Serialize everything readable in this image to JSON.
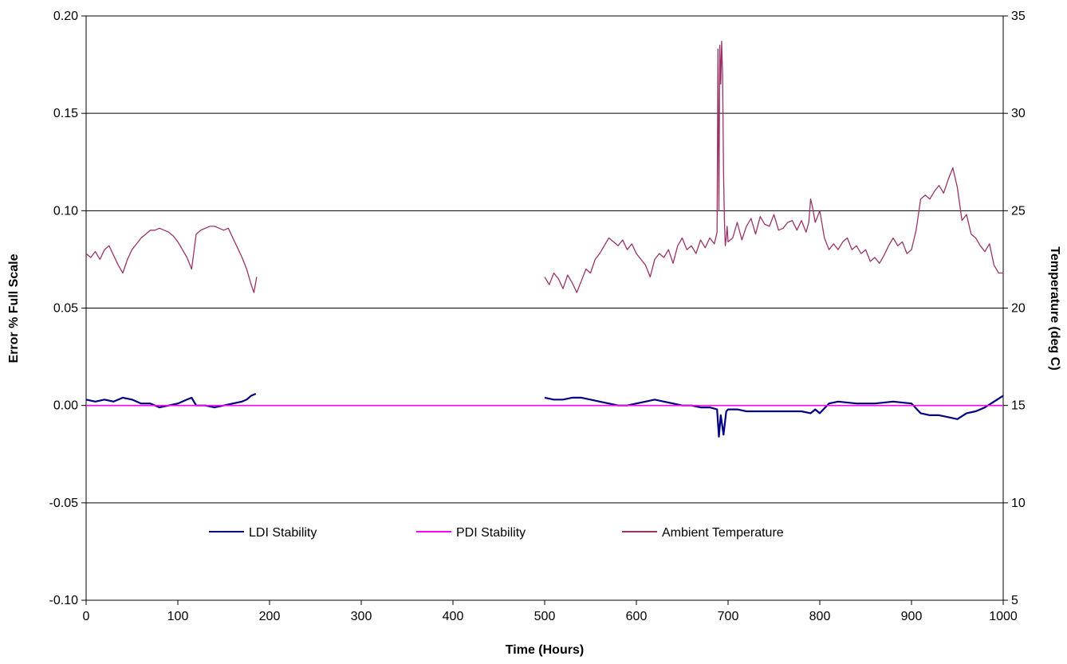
{
  "chart_data": {
    "type": "line",
    "title": "",
    "xlabel": "Time (Hours)",
    "ylabel": "Error % Full Scale",
    "y2label": "Temperature (deg C)",
    "xlim": [
      0,
      1000
    ],
    "ylim": [
      -0.1,
      0.2
    ],
    "y2lim": [
      5,
      35
    ],
    "x_ticks": [
      "0",
      "100",
      "200",
      "300",
      "400",
      "500",
      "600",
      "700",
      "800",
      "900",
      "1000"
    ],
    "y_ticks": [
      "-0.10",
      "-0.05",
      "0.00",
      "0.05",
      "0.10",
      "0.15",
      "0.20"
    ],
    "y2_ticks": [
      "5",
      "10",
      "15",
      "20",
      "25",
      "30",
      "35"
    ],
    "grid": "horizontal",
    "legend_position": "bottom-center",
    "colors": {
      "ldi": "#000080",
      "pdi": "#ff00ff",
      "ambient": "#993366"
    },
    "series": [
      {
        "name": "LDI Stability",
        "axis": "left",
        "segments": [
          {
            "x": [
              0,
              10,
              20,
              30,
              40,
              50,
              60,
              70,
              80,
              90,
              100,
              110,
              115,
              120,
              130,
              140,
              150,
              160,
              170,
              175,
              180,
              185
            ],
            "y": [
              0.003,
              0.002,
              0.003,
              0.002,
              0.004,
              0.003,
              0.001,
              0.001,
              -0.001,
              0.0,
              0.001,
              0.003,
              0.004,
              0.0,
              0.0,
              -0.001,
              0.0,
              0.001,
              0.002,
              0.003,
              0.005,
              0.006
            ]
          },
          {
            "x": [
              500,
              510,
              520,
              530,
              540,
              550,
              560,
              570,
              580,
              590,
              600,
              610,
              620,
              630,
              640,
              650,
              660,
              670,
              680,
              688,
              690,
              692,
              695,
              698,
              700,
              710,
              720,
              740,
              760,
              780,
              790,
              795,
              800,
              810,
              820,
              840,
              860,
              880,
              900,
              910,
              920,
              930,
              940,
              950,
              960,
              970,
              980,
              990,
              1000
            ],
            "y": [
              0.004,
              0.003,
              0.003,
              0.004,
              0.004,
              0.003,
              0.002,
              0.001,
              0.0,
              0.0,
              0.001,
              0.002,
              0.003,
              0.002,
              0.001,
              0.0,
              0.0,
              -0.001,
              -0.001,
              -0.002,
              -0.016,
              -0.005,
              -0.015,
              -0.003,
              -0.002,
              -0.002,
              -0.003,
              -0.003,
              -0.003,
              -0.003,
              -0.004,
              -0.002,
              -0.004,
              0.001,
              0.002,
              0.001,
              0.001,
              0.002,
              0.001,
              -0.004,
              -0.005,
              -0.005,
              -0.006,
              -0.007,
              -0.004,
              -0.003,
              -0.001,
              0.002,
              0.005
            ]
          }
        ]
      },
      {
        "name": "PDI Stability",
        "axis": "left",
        "segments": [
          {
            "x": [
              0,
              1000
            ],
            "y": [
              0.0,
              0.0
            ]
          }
        ]
      },
      {
        "name": "Ambient Temperature",
        "axis": "right",
        "segments": [
          {
            "x": [
              0,
              5,
              10,
              15,
              20,
              25,
              30,
              35,
              40,
              45,
              50,
              55,
              60,
              65,
              70,
              75,
              80,
              85,
              90,
              95,
              100,
              105,
              110,
              115,
              120,
              125,
              130,
              135,
              140,
              145,
              150,
              155,
              160,
              165,
              170,
              175,
              180,
              183,
              186
            ],
            "y": [
              22.8,
              22.6,
              22.9,
              22.5,
              23.0,
              23.2,
              22.7,
              22.2,
              21.8,
              22.5,
              23.0,
              23.3,
              23.6,
              23.8,
              24.0,
              24.0,
              24.1,
              24.0,
              23.9,
              23.7,
              23.4,
              23.0,
              22.6,
              22.0,
              23.8,
              24.0,
              24.1,
              24.2,
              24.2,
              24.1,
              24.0,
              24.1,
              23.6,
              23.1,
              22.6,
              22.0,
              21.2,
              20.8,
              21.6
            ]
          },
          {
            "x": [
              500,
              505,
              510,
              515,
              520,
              525,
              530,
              535,
              540,
              545,
              550,
              555,
              560,
              565,
              570,
              575,
              580,
              585,
              590,
              595,
              600,
              605,
              610,
              615,
              620,
              625,
              630,
              635,
              640,
              645,
              650,
              655,
              660,
              665,
              670,
              675,
              680,
              685,
              688,
              689,
              690,
              691,
              692,
              693,
              694,
              695,
              696,
              697,
              698,
              699,
              700,
              705,
              710,
              715,
              720,
              725,
              730,
              735,
              740,
              745,
              750,
              755,
              760,
              765,
              770,
              775,
              780,
              785,
              788,
              790,
              792,
              795,
              800,
              805,
              810,
              815,
              820,
              825,
              830,
              835,
              840,
              845,
              850,
              855,
              860,
              865,
              870,
              875,
              880,
              885,
              890,
              895,
              900,
              905,
              910,
              915,
              920,
              925,
              930,
              935,
              940,
              945,
              950,
              955,
              960,
              965,
              970,
              975,
              980,
              985,
              990,
              995,
              1000
            ],
            "y": [
              21.6,
              21.2,
              21.8,
              21.5,
              21.0,
              21.7,
              21.3,
              20.8,
              21.4,
              22.0,
              21.8,
              22.5,
              22.8,
              23.2,
              23.6,
              23.4,
              23.2,
              23.5,
              23.0,
              23.3,
              22.8,
              22.5,
              22.2,
              21.6,
              22.5,
              22.8,
              22.6,
              23.0,
              22.3,
              23.2,
              23.6,
              23.0,
              23.2,
              22.8,
              23.5,
              23.1,
              23.6,
              23.3,
              23.9,
              33.3,
              25.0,
              33.5,
              31.5,
              33.7,
              32.0,
              27.0,
              24.5,
              23.2,
              23.6,
              24.2,
              23.4,
              23.6,
              24.4,
              23.5,
              24.2,
              24.6,
              23.8,
              24.7,
              24.3,
              24.2,
              24.8,
              24.0,
              24.1,
              24.4,
              24.5,
              24.0,
              24.5,
              23.9,
              24.4,
              25.6,
              25.2,
              24.4,
              25.0,
              23.6,
              23.0,
              23.3,
              23.0,
              23.4,
              23.6,
              23.0,
              23.2,
              22.8,
              23.0,
              22.4,
              22.6,
              22.3,
              22.7,
              23.2,
              23.6,
              23.2,
              23.4,
              22.8,
              23.0,
              24.0,
              25.6,
              25.8,
              25.6,
              26.0,
              26.3,
              25.9,
              26.6,
              27.2,
              26.2,
              24.5,
              24.8,
              23.8,
              23.6,
              23.2,
              22.9,
              23.3,
              22.2,
              21.8,
              21.8
            ]
          }
        ]
      }
    ]
  }
}
